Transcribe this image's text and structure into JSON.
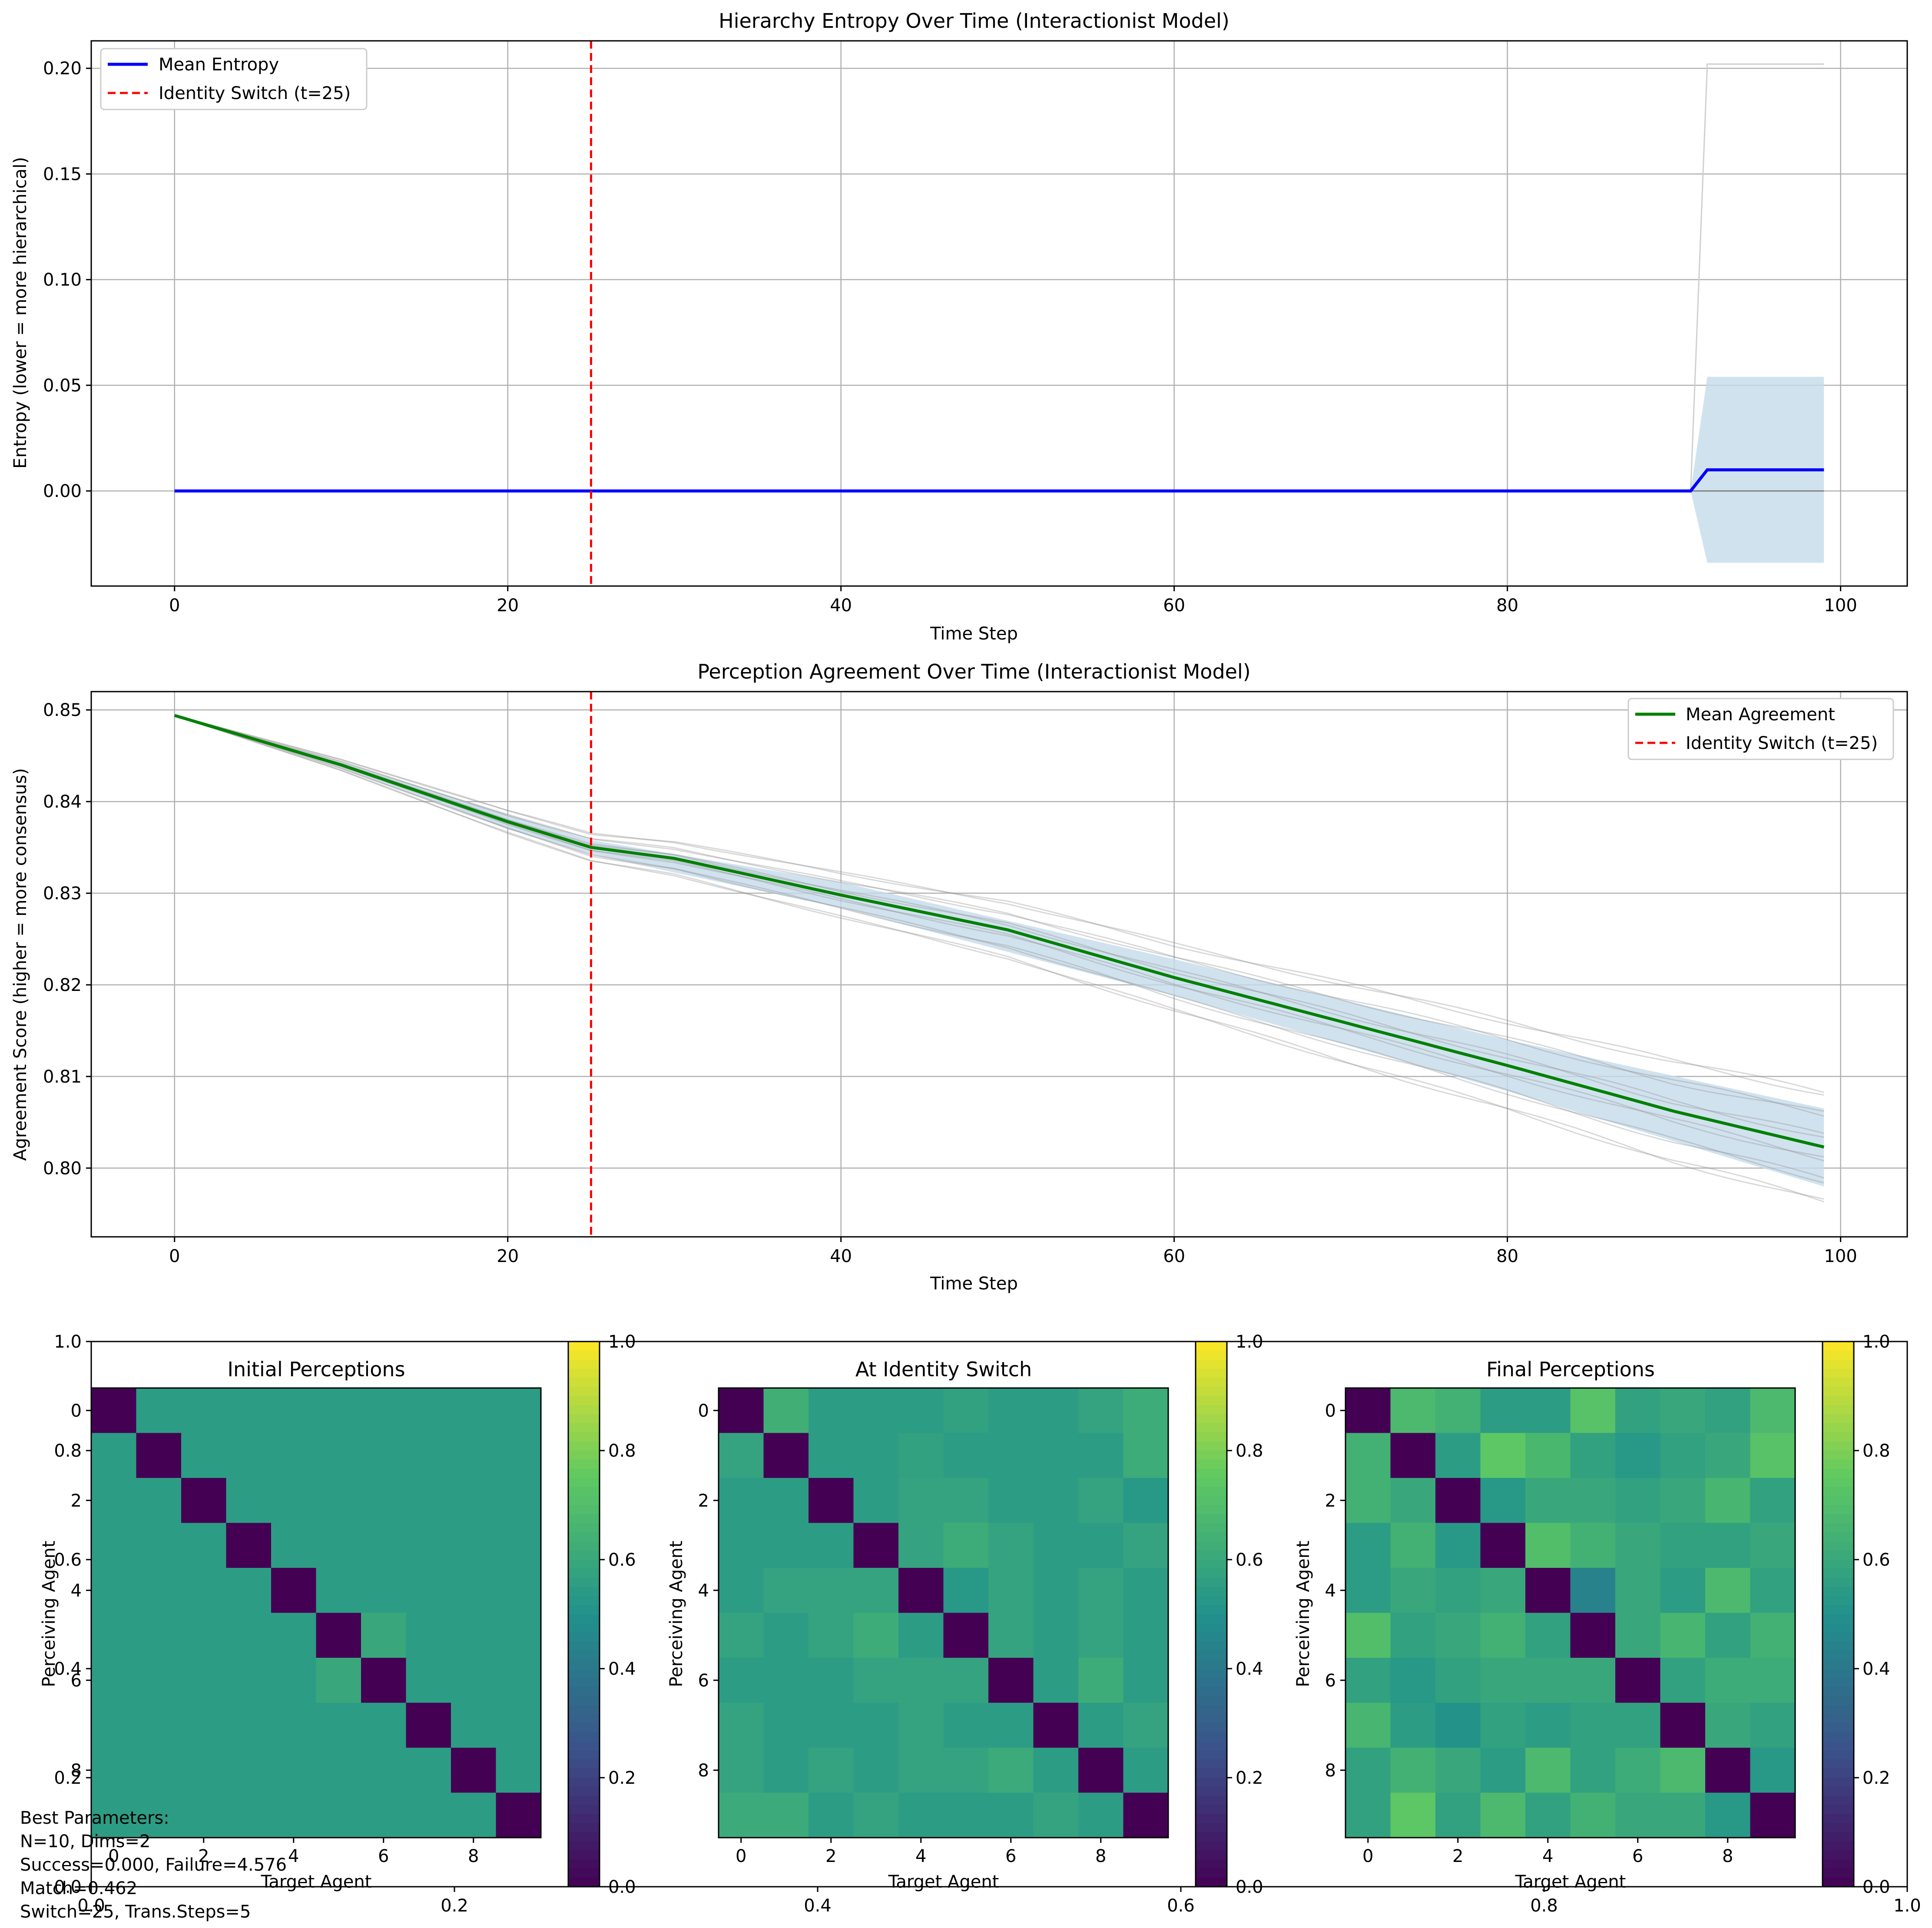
{
  "chart_data": [
    {
      "type": "line",
      "title": "Hierarchy Entropy Over Time (Interactionist Model)",
      "xlabel": "Time Step",
      "ylabel": "Entropy (lower = more hierarchical)",
      "xlim": [
        -5,
        104
      ],
      "ylim": [
        -0.045,
        0.213
      ],
      "xticks": [
        "0",
        "20",
        "40",
        "60",
        "80",
        "100"
      ],
      "yticks": [
        "0.00",
        "0.05",
        "0.10",
        "0.15",
        "0.20"
      ],
      "grid": true,
      "legend_position": "upper-left",
      "switch_time": 25,
      "series": [
        {
          "name": "Mean Entropy",
          "color": "#0000ff",
          "points": [
            [
              0,
              0
            ],
            [
              91,
              0
            ],
            [
              92,
              0.01
            ],
            [
              99,
              0.01
            ]
          ]
        },
        {
          "name": "Identity Switch (t=25)",
          "color": "#ff0000",
          "style": "dashed"
        }
      ],
      "band": {
        "color": "#c6dbeb",
        "points_upper": [
          [
            91,
            0
          ],
          [
            92,
            0.054
          ],
          [
            99,
            0.054
          ]
        ],
        "points_lower": [
          [
            91,
            0
          ],
          [
            92,
            -0.034
          ],
          [
            99,
            -0.034
          ]
        ]
      },
      "runs_upper": [
        [
          91,
          0
        ],
        [
          92,
          0.202
        ],
        [
          99,
          0.202
        ]
      ]
    },
    {
      "type": "line",
      "title": "Perception Agreement Over Time (Interactionist Model)",
      "xlabel": "Time Step",
      "ylabel": "Agreement Score (higher = more consensus)",
      "xlim": [
        -5,
        104
      ],
      "ylim": [
        0.7925,
        0.852
      ],
      "xticks": [
        "0",
        "20",
        "40",
        "60",
        "80",
        "100"
      ],
      "yticks": [
        "0.80",
        "0.81",
        "0.82",
        "0.83",
        "0.84",
        "0.85"
      ],
      "grid": true,
      "legend_position": "upper-right",
      "switch_time": 25,
      "series": [
        {
          "name": "Mean Agreement",
          "color": "#008000",
          "points": [
            [
              0,
              0.8494
            ],
            [
              10,
              0.844
            ],
            [
              20,
              0.8378
            ],
            [
              25,
              0.835
            ],
            [
              30,
              0.8338
            ],
            [
              40,
              0.8298
            ],
            [
              50,
              0.826
            ],
            [
              60,
              0.8208
            ],
            [
              70,
              0.816
            ],
            [
              80,
              0.8112
            ],
            [
              90,
              0.8062
            ],
            [
              99,
              0.8023
            ]
          ]
        },
        {
          "name": "Identity Switch (t=25)",
          "color": "#ff0000",
          "style": "dashed"
        }
      ],
      "band": {
        "color": "#c6dbeb",
        "points_upper": [
          [
            0,
            0.8494
          ],
          [
            10,
            0.8443
          ],
          [
            20,
            0.8386
          ],
          [
            25,
            0.8358
          ],
          [
            40,
            0.8312
          ],
          [
            60,
            0.8228
          ],
          [
            80,
            0.814
          ],
          [
            99,
            0.8065
          ]
        ],
        "points_lower": [
          [
            0,
            0.8494
          ],
          [
            10,
            0.8437
          ],
          [
            20,
            0.837
          ],
          [
            25,
            0.8342
          ],
          [
            40,
            0.8284
          ],
          [
            60,
            0.8188
          ],
          [
            80,
            0.8084
          ],
          [
            99,
            0.798
          ]
        ]
      }
    },
    {
      "type": "heatmap",
      "title": "Initial Perceptions",
      "xlabel": "Target Agent",
      "ylabel": "Perceiving Agent",
      "xticks": [
        "0",
        "2",
        "4",
        "6",
        "8"
      ],
      "yticks": [
        "0",
        "2",
        "4",
        "6",
        "8"
      ],
      "colorbar_ticks": [
        "0.0",
        "0.2",
        "0.4",
        "0.6",
        "0.8",
        "1.0"
      ],
      "values": [
        [
          0,
          0.55,
          0.55,
          0.55,
          0.55,
          0.55,
          0.55,
          0.55,
          0.55,
          0.55
        ],
        [
          0.55,
          0,
          0.55,
          0.55,
          0.55,
          0.55,
          0.55,
          0.55,
          0.55,
          0.55
        ],
        [
          0.55,
          0.55,
          0,
          0.55,
          0.55,
          0.55,
          0.55,
          0.55,
          0.55,
          0.55
        ],
        [
          0.55,
          0.55,
          0.55,
          0,
          0.55,
          0.55,
          0.55,
          0.55,
          0.55,
          0.55
        ],
        [
          0.55,
          0.55,
          0.55,
          0.55,
          0,
          0.55,
          0.55,
          0.55,
          0.55,
          0.55
        ],
        [
          0.55,
          0.55,
          0.55,
          0.55,
          0.55,
          0,
          0.6,
          0.55,
          0.55,
          0.55
        ],
        [
          0.55,
          0.55,
          0.55,
          0.55,
          0.55,
          0.6,
          0,
          0.55,
          0.55,
          0.55
        ],
        [
          0.55,
          0.55,
          0.55,
          0.55,
          0.55,
          0.55,
          0.55,
          0,
          0.55,
          0.55
        ],
        [
          0.55,
          0.55,
          0.55,
          0.55,
          0.55,
          0.55,
          0.55,
          0.55,
          0,
          0.55
        ],
        [
          0.55,
          0.55,
          0.55,
          0.55,
          0.55,
          0.55,
          0.55,
          0.55,
          0.55,
          0
        ]
      ]
    },
    {
      "type": "heatmap",
      "title": "At Identity Switch",
      "xlabel": "Target Agent",
      "ylabel": "Perceiving Agent",
      "xticks": [
        "0",
        "2",
        "4",
        "6",
        "8"
      ],
      "yticks": [
        "0",
        "2",
        "4",
        "6",
        "8"
      ],
      "colorbar_ticks": [
        "0.0",
        "0.2",
        "0.4",
        "0.6",
        "0.8",
        "1.0"
      ],
      "values": [
        [
          0,
          0.63,
          0.55,
          0.55,
          0.55,
          0.57,
          0.55,
          0.55,
          0.58,
          0.62
        ],
        [
          0.58,
          0,
          0.55,
          0.55,
          0.57,
          0.55,
          0.55,
          0.55,
          0.55,
          0.62
        ],
        [
          0.55,
          0.55,
          0,
          0.55,
          0.58,
          0.58,
          0.55,
          0.55,
          0.58,
          0.53
        ],
        [
          0.55,
          0.55,
          0.55,
          0,
          0.58,
          0.62,
          0.58,
          0.55,
          0.55,
          0.58
        ],
        [
          0.55,
          0.58,
          0.58,
          0.58,
          0,
          0.53,
          0.58,
          0.55,
          0.58,
          0.55
        ],
        [
          0.58,
          0.55,
          0.58,
          0.62,
          0.55,
          0,
          0.58,
          0.55,
          0.58,
          0.55
        ],
        [
          0.55,
          0.55,
          0.55,
          0.58,
          0.58,
          0.58,
          0,
          0.55,
          0.62,
          0.55
        ],
        [
          0.58,
          0.55,
          0.55,
          0.55,
          0.58,
          0.55,
          0.55,
          0,
          0.55,
          0.58
        ],
        [
          0.58,
          0.55,
          0.58,
          0.55,
          0.58,
          0.58,
          0.61,
          0.55,
          0,
          0.55
        ],
        [
          0.61,
          0.61,
          0.55,
          0.58,
          0.55,
          0.55,
          0.55,
          0.58,
          0.55,
          0
        ]
      ]
    },
    {
      "type": "heatmap",
      "title": "Final Perceptions",
      "xlabel": "Target Agent",
      "ylabel": "Perceiving Agent",
      "xticks": [
        "0",
        "2",
        "4",
        "6",
        "8"
      ],
      "yticks": [
        "0",
        "2",
        "4",
        "6",
        "8"
      ],
      "colorbar_ticks": [
        "0.0",
        "0.2",
        "0.4",
        "0.6",
        "0.8",
        "1.0"
      ],
      "values": [
        [
          0,
          0.68,
          0.64,
          0.55,
          0.55,
          0.72,
          0.57,
          0.6,
          0.57,
          0.68
        ],
        [
          0.64,
          0,
          0.55,
          0.74,
          0.67,
          0.57,
          0.53,
          0.57,
          0.6,
          0.72
        ],
        [
          0.64,
          0.6,
          0,
          0.53,
          0.6,
          0.6,
          0.57,
          0.6,
          0.66,
          0.57
        ],
        [
          0.55,
          0.64,
          0.53,
          0,
          0.7,
          0.64,
          0.6,
          0.57,
          0.57,
          0.6
        ],
        [
          0.55,
          0.6,
          0.57,
          0.6,
          0,
          0.44,
          0.6,
          0.55,
          0.68,
          0.57
        ],
        [
          0.7,
          0.57,
          0.6,
          0.64,
          0.57,
          0,
          0.6,
          0.66,
          0.57,
          0.64
        ],
        [
          0.57,
          0.53,
          0.57,
          0.6,
          0.6,
          0.6,
          0,
          0.57,
          0.62,
          0.62
        ],
        [
          0.66,
          0.55,
          0.51,
          0.57,
          0.55,
          0.57,
          0.57,
          0,
          0.6,
          0.57
        ],
        [
          0.57,
          0.64,
          0.6,
          0.55,
          0.68,
          0.57,
          0.62,
          0.68,
          0,
          0.53
        ],
        [
          0.57,
          0.74,
          0.57,
          0.68,
          0.57,
          0.64,
          0.6,
          0.6,
          0.53,
          0
        ]
      ]
    }
  ],
  "background_axes": {
    "xticks": [
      "0.0",
      "0.2",
      "0.4",
      "0.6",
      "0.8",
      "1.0"
    ],
    "yticks": [
      "0.0",
      "0.2",
      "0.4",
      "0.6",
      "0.8",
      "1.0"
    ]
  },
  "notes": {
    "lines": [
      "Best Parameters:",
      "N=10, Dims=2",
      "Success=0.000, Failure=4.576",
      "Match=0.462",
      "Switch=25, Trans.Steps=5"
    ]
  }
}
